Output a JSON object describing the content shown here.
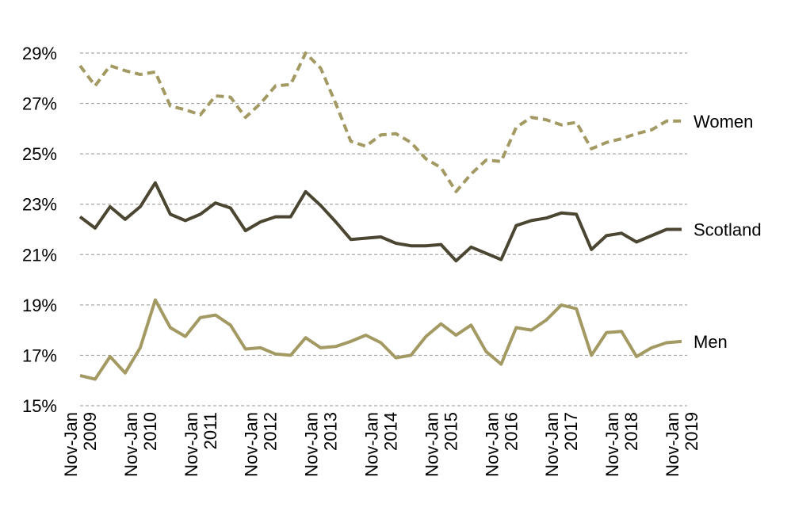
{
  "chart_data": {
    "type": "line",
    "title": "",
    "xlabel": "",
    "ylabel": "",
    "ylim": [
      15,
      29
    ],
    "yticks": [
      15,
      17,
      19,
      21,
      23,
      25,
      27,
      29
    ],
    "ytick_labels": [
      "15%",
      "17%",
      "19%",
      "21%",
      "23%",
      "25%",
      "27%",
      "29%"
    ],
    "grid": true,
    "legend": "labels at line ends (right)",
    "x_tick_labels": [
      {
        "index": 0,
        "line1": "Nov-Jan",
        "line2": "2009"
      },
      {
        "index": 4,
        "line1": "Nov-Jan",
        "line2": "2010"
      },
      {
        "index": 8,
        "line1": "Nov-Jan",
        "line2": "2011"
      },
      {
        "index": 12,
        "line1": "Nov-Jan",
        "line2": "2012"
      },
      {
        "index": 16,
        "line1": "Nov-Jan",
        "line2": "2013"
      },
      {
        "index": 20,
        "line1": "Nov-Jan",
        "line2": "2014"
      },
      {
        "index": 24,
        "line1": "Nov-Jan",
        "line2": "2015"
      },
      {
        "index": 28,
        "line1": "Nov-Jan",
        "line2": "2016"
      },
      {
        "index": 32,
        "line1": "Nov-Jan",
        "line2": "2017"
      },
      {
        "index": 36,
        "line1": "Nov-Jan",
        "line2": "2018"
      },
      {
        "index": 40,
        "line1": "Nov-Jan",
        "line2": "2019"
      }
    ],
    "series": [
      {
        "name": "Women",
        "color": "#a39a63",
        "dash": true,
        "values": [
          28.5,
          27.7,
          28.5,
          28.3,
          28.15,
          28.25,
          26.9,
          26.75,
          26.55,
          27.3,
          27.25,
          26.45,
          27.0,
          27.7,
          27.75,
          29.0,
          28.4,
          27.0,
          25.5,
          25.3,
          25.75,
          25.8,
          25.45,
          24.8,
          24.45,
          23.5,
          24.2,
          24.75,
          24.7,
          26.05,
          26.45,
          26.35,
          26.15,
          26.25,
          25.2,
          25.45,
          25.6,
          25.8,
          25.95,
          26.3,
          26.3
        ]
      },
      {
        "name": "Scotland",
        "color": "#4a4632",
        "dash": false,
        "values": [
          22.5,
          22.05,
          22.9,
          22.4,
          22.9,
          23.85,
          22.6,
          22.35,
          22.6,
          23.05,
          22.85,
          21.95,
          22.3,
          22.5,
          22.5,
          23.5,
          22.95,
          22.3,
          21.6,
          21.65,
          21.7,
          21.45,
          21.35,
          21.35,
          21.4,
          20.75,
          21.3,
          21.05,
          20.8,
          22.15,
          22.35,
          22.45,
          22.65,
          22.6,
          21.2,
          21.75,
          21.85,
          21.5,
          21.75,
          22.0,
          22.0
        ]
      },
      {
        "name": "Men",
        "color": "#a39a63",
        "dash": false,
        "values": [
          16.2,
          16.05,
          16.95,
          16.3,
          17.3,
          19.2,
          18.1,
          17.75,
          18.5,
          18.6,
          18.2,
          17.25,
          17.3,
          17.05,
          17.0,
          17.7,
          17.3,
          17.35,
          17.55,
          17.8,
          17.5,
          16.9,
          17.0,
          17.75,
          18.25,
          17.8,
          18.2,
          17.15,
          16.65,
          18.1,
          18.0,
          18.4,
          19.0,
          18.85,
          17.0,
          17.9,
          17.95,
          16.95,
          17.3,
          17.5,
          17.55
        ]
      }
    ]
  }
}
